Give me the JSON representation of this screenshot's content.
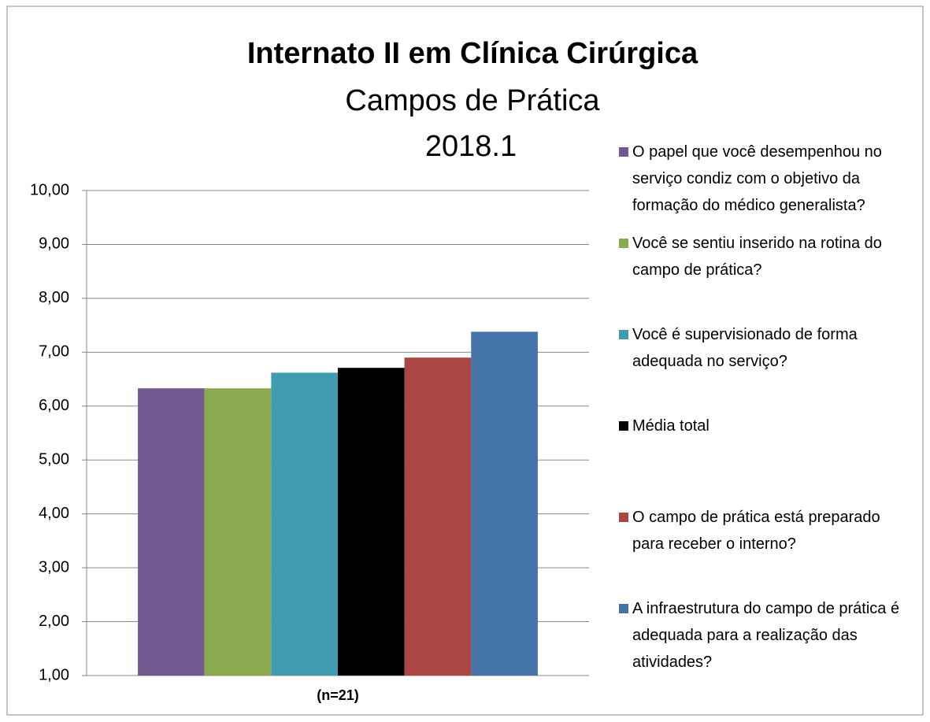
{
  "chart_data": {
    "type": "bar",
    "title": "Internato II em Clínica Cirúrgica",
    "subtitle": [
      "Campos de Prática",
      "2018.1"
    ],
    "categories": [
      "(n=21)"
    ],
    "series": [
      {
        "name": "O papel que você desempenhou no serviço condiz com o objetivo da formação do médico generalista?",
        "color": "#725990",
        "values": [
          6.33
        ]
      },
      {
        "name": "Você se sentiu inserido na rotina do campo de prática?",
        "color": "#8ba94f",
        "values": [
          6.33
        ]
      },
      {
        "name": "Você é supervisionado de forma adequada no serviço?",
        "color": "#419cb0",
        "values": [
          6.62
        ]
      },
      {
        "name": "Média total",
        "color": "#000000",
        "values": [
          6.71
        ]
      },
      {
        "name": "O campo de prática está preparado para receber o interno?",
        "color": "#aa4745",
        "values": [
          6.9
        ]
      },
      {
        "name": "A infraestrutura do campo de prática é adequada para a realização das atividades?",
        "color": "#4473a8",
        "values": [
          7.38
        ]
      }
    ],
    "ylim": [
      1,
      10
    ],
    "yticks": [
      {
        "value": 1,
        "label": "1,00"
      },
      {
        "value": 2,
        "label": "2,00"
      },
      {
        "value": 3,
        "label": "3,00"
      },
      {
        "value": 4,
        "label": "4,00"
      },
      {
        "value": 5,
        "label": "5,00"
      },
      {
        "value": 6,
        "label": "6,00"
      },
      {
        "value": 7,
        "label": "7,00"
      },
      {
        "value": 8,
        "label": "8,00"
      },
      {
        "value": 9,
        "label": "9,00"
      },
      {
        "value": 10,
        "label": "10,00"
      }
    ],
    "grid": true,
    "legend": "right"
  }
}
